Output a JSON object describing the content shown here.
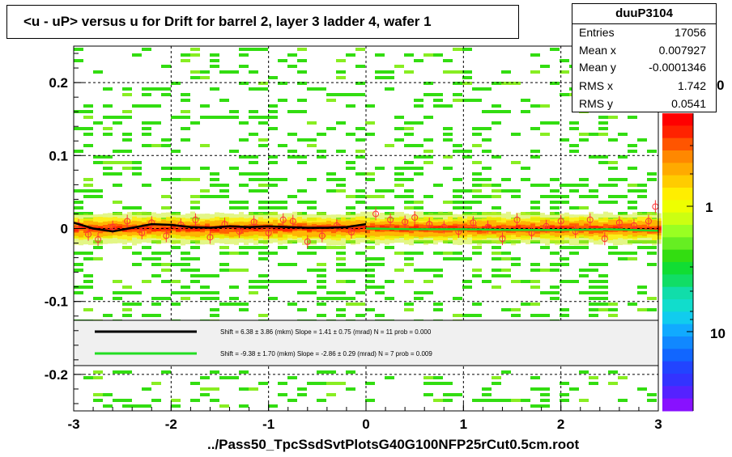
{
  "title": "<u - uP>       versus   u for Drift for barrel 2, layer 3 ladder 4, wafer 1",
  "footer": "../Pass50_TpcSsdSvtPlotsG40G100NFP25rCut0.5cm.root",
  "stats": {
    "name": "duuP3104",
    "rows": [
      {
        "label": "Entries",
        "value": "17056"
      },
      {
        "label": "Mean x",
        "value": "0.007927"
      },
      {
        "label": "Mean y",
        "value": "-0.0001346"
      },
      {
        "label": "RMS x",
        "value": "1.742"
      },
      {
        "label": "RMS y",
        "value": "0.0541"
      }
    ]
  },
  "palette_labels": [
    "0",
    "1",
    "10"
  ],
  "legend": [
    {
      "color": "#000000",
      "text": "Shift =     6.38 ± 3.86 (mkm) Slope =     1.41 ± 0.75 (mrad)  N = 11 prob = 0.000"
    },
    {
      "color": "#22dd22",
      "text": "Shift =    -9.38 ± 1.70 (mkm) Slope =    -2.86 ± 0.29 (mrad)  N = 7 prob = 0.009"
    }
  ],
  "chart_data": {
    "type": "heatmap",
    "title": "<u - uP>       versus   u for Drift for barrel 2, layer 3 ladder 4, wafer 1",
    "xlabel": "",
    "ylabel": "",
    "xlim": [
      -3,
      3
    ],
    "ylim": [
      -0.25,
      0.25
    ],
    "x_ticks": [
      -3,
      -2,
      -1,
      0,
      1,
      2,
      3
    ],
    "y_ticks": [
      -0.2,
      -0.1,
      0,
      0.1,
      0.2
    ],
    "x_tick_labels": [
      "-3",
      "-2",
      "-1",
      "0",
      "1",
      "2",
      "3"
    ],
    "y_tick_labels": [
      "-0.2",
      "-0.1",
      "0",
      "0.1",
      "0.2"
    ],
    "grid": true,
    "color_scale": "log",
    "colors": {
      "band_high": "#ff2200",
      "band_mid": "#ffaa00",
      "band_low": "#ffee00",
      "background_cells": "#33dd11",
      "black_fit": "#000000",
      "green_fit": "#22dd22",
      "profile_marker": "#ff3333"
    },
    "black_fit": {
      "x": [
        -3.0,
        -2.8,
        -2.6,
        -2.4,
        -2.2,
        -2.0,
        -1.8,
        -1.6,
        -1.4,
        -1.2,
        -1.0,
        -0.8,
        -0.6,
        -0.4,
        -0.2,
        0.0
      ],
      "y": [
        0.008,
        0.0,
        -0.004,
        0.001,
        0.006,
        0.005,
        0.002,
        0.001,
        0.003,
        0.002,
        0.003,
        0.002,
        0.001,
        0.001,
        0.002,
        0.006
      ]
    },
    "green_fit": {
      "x": [
        0.0,
        0.5,
        1.0,
        1.5,
        2.0,
        2.5,
        3.0
      ],
      "y": [
        0.0,
        -0.001,
        -0.001,
        -0.002,
        -0.002,
        -0.001,
        -0.003
      ]
    },
    "profile_points": {
      "x": [
        -2.95,
        -2.85,
        -2.75,
        -2.6,
        -2.45,
        -2.3,
        -2.2,
        -2.05,
        -1.9,
        -1.75,
        -1.6,
        -1.45,
        -1.3,
        -1.15,
        -1.0,
        -0.85,
        -0.75,
        -0.6,
        -0.45,
        -0.3,
        -0.15,
        0.1,
        0.25,
        0.4,
        0.5,
        0.65,
        0.8,
        0.95,
        1.1,
        1.25,
        1.4,
        1.55,
        1.7,
        1.85,
        2.0,
        2.15,
        2.3,
        2.45,
        2.6,
        2.75,
        2.9,
        2.97
      ],
      "y": [
        0.004,
        -0.008,
        -0.015,
        0.002,
        0.01,
        -0.006,
        0.008,
        -0.01,
        0.005,
        0.012,
        -0.012,
        0.006,
        -0.004,
        0.009,
        -0.006,
        0.012,
        0.01,
        -0.018,
        -0.01,
        0.004,
        -0.005,
        0.02,
        0.012,
        0.009,
        0.015,
        0.006,
        0.002,
        -0.004,
        0.008,
        0.002,
        -0.014,
        0.012,
        -0.006,
        0.003,
        0.01,
        -0.004,
        0.012,
        -0.014,
        0.008,
        0.004,
        0.01,
        0.03
      ]
    }
  }
}
